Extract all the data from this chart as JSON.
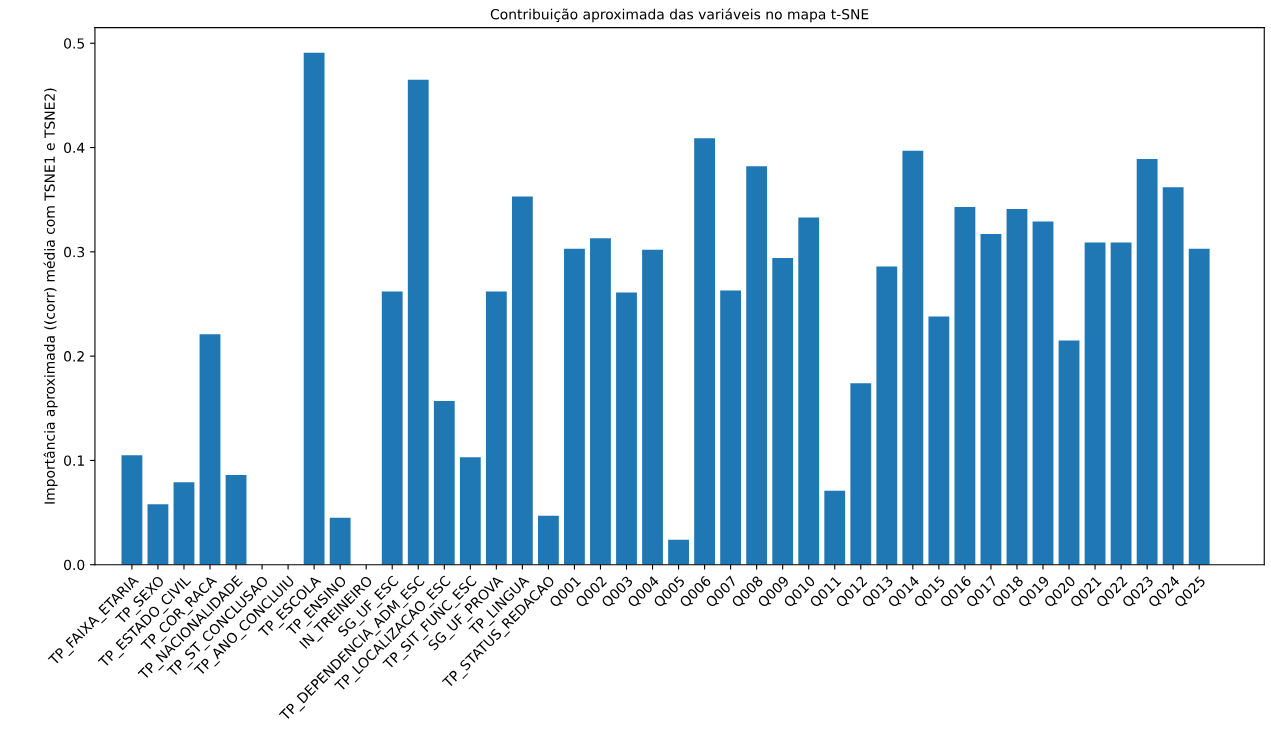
{
  "chart_data": {
    "type": "bar",
    "title": "Contribuição aproximada das variáveis no mapa t-SNE",
    "ylabel": "Importância aproximada ((corr) média com TSNE1 e TSNE2)",
    "categories": [
      "TP_FAIXA_ETARIA",
      "TP_SEXO",
      "TP_ESTADO_CIVIL",
      "TP_COR_RACA",
      "TP_NACIONALIDADE",
      "TP_ST_CONCLUSAO",
      "TP_ANO_CONCLUIU",
      "TP_ESCOLA",
      "TP_ENSINO",
      "IN_TREINEIRO",
      "SG_UF_ESC",
      "TP_DEPENDENCIA_ADM_ESC",
      "TP_LOCALIZACAO_ESC",
      "TP_SIT_FUNC_ESC",
      "SG_UF_PROVA",
      "TP_LINGUA",
      "TP_STATUS_REDACAO",
      "Q001",
      "Q002",
      "Q003",
      "Q004",
      "Q005",
      "Q006",
      "Q007",
      "Q008",
      "Q009",
      "Q010",
      "Q011",
      "Q012",
      "Q013",
      "Q014",
      "Q015",
      "Q016",
      "Q017",
      "Q018",
      "Q019",
      "Q020",
      "Q021",
      "Q022",
      "Q023",
      "Q024",
      "Q025"
    ],
    "values": [
      0.105,
      0.058,
      0.079,
      0.221,
      0.086,
      null,
      null,
      0.491,
      0.045,
      null,
      0.262,
      0.465,
      0.157,
      0.103,
      0.262,
      0.353,
      0.047,
      0.303,
      0.313,
      0.261,
      0.302,
      0.024,
      0.409,
      0.263,
      0.382,
      0.294,
      0.333,
      0.071,
      0.174,
      0.286,
      0.397,
      0.238,
      0.343,
      0.317,
      0.341,
      0.329,
      0.215,
      0.309,
      0.309,
      0.389,
      0.362,
      0.303
    ],
    "color": "#1f77b4",
    "ylim": [
      0,
      0.515
    ],
    "yticks": [
      {
        "value": 0,
        "label": "0.0"
      },
      0.1,
      0.2,
      0.3,
      0.4,
      0.5
    ]
  }
}
